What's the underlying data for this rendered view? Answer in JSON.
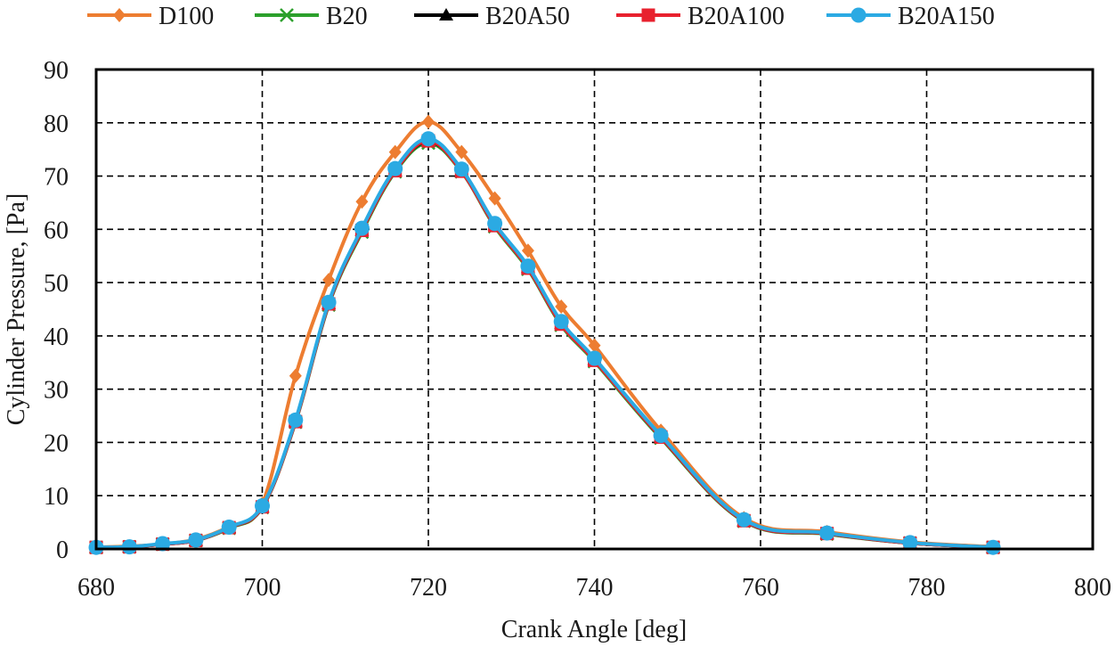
{
  "chart_data": {
    "type": "line",
    "title": "",
    "xlabel": "Crank Angle  [deg]",
    "ylabel": "Cylinder Pressure, [Pa]",
    "xlim": [
      680,
      800
    ],
    "ylim": [
      0,
      90
    ],
    "xticks": [
      680,
      700,
      720,
      740,
      760,
      780,
      800
    ],
    "yticks": [
      0,
      10,
      20,
      30,
      40,
      50,
      60,
      70,
      80,
      90
    ],
    "xtick_labels": [
      "680",
      "700",
      "720",
      "740",
      "760",
      "780",
      "800"
    ],
    "ytick_labels": [
      "0",
      "10",
      "20",
      "30",
      "40",
      "50",
      "60",
      "70",
      "80",
      "90"
    ],
    "grid": true,
    "legend_position": "top",
    "x": [
      680,
      684,
      688,
      692,
      696,
      700,
      704,
      708,
      712,
      716,
      720,
      724,
      728,
      732,
      736,
      740,
      748,
      758,
      768,
      778,
      788
    ],
    "series": [
      {
        "name": "D100",
        "color": "#ED7D31",
        "marker": "diamond",
        "values": [
          0.3,
          0.5,
          0.9,
          1.8,
          4.2,
          8.5,
          32.5,
          50.5,
          65.2,
          74.5,
          80.2,
          74.5,
          65.8,
          56.0,
          45.5,
          38.2,
          22.2,
          5.8,
          3.2,
          1.3,
          0.4
        ]
      },
      {
        "name": "B20",
        "color": "#2CA02C",
        "marker": "x",
        "values": [
          0.3,
          0.4,
          0.9,
          1.6,
          3.9,
          7.8,
          23.8,
          45.8,
          59.5,
          70.8,
          76.2,
          70.8,
          60.5,
          52.5,
          42.0,
          35.2,
          20.8,
          5.2,
          2.8,
          1.1,
          0.3
        ]
      },
      {
        "name": "B20A50",
        "color": "#000000",
        "marker": "triangle",
        "values": [
          0.3,
          0.4,
          0.9,
          1.6,
          4.0,
          7.9,
          24.0,
          46.0,
          59.8,
          71.0,
          76.5,
          71.0,
          60.8,
          52.8,
          42.3,
          35.5,
          21.0,
          5.3,
          2.9,
          1.1,
          0.3
        ]
      },
      {
        "name": "B20A100",
        "color": "#E8212E",
        "marker": "square",
        "values": [
          0.3,
          0.4,
          0.9,
          1.6,
          4.0,
          7.9,
          23.9,
          46.0,
          59.8,
          71.0,
          76.6,
          70.9,
          60.7,
          52.7,
          42.2,
          35.4,
          21.0,
          5.3,
          2.9,
          1.1,
          0.3
        ]
      },
      {
        "name": "B20A150",
        "color": "#2BAAE3",
        "marker": "circle",
        "values": [
          0.3,
          0.4,
          1.0,
          1.7,
          4.1,
          8.1,
          24.2,
          46.3,
          60.2,
          71.4,
          77.0,
          71.3,
          61.1,
          53.1,
          42.7,
          35.8,
          21.3,
          5.5,
          3.0,
          1.2,
          0.3
        ]
      }
    ]
  }
}
